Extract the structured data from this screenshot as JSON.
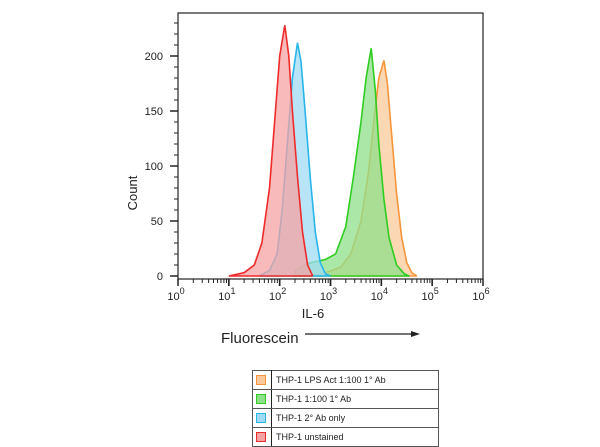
{
  "chart_data": {
    "type": "area",
    "title": "",
    "xlabel": "IL-6",
    "ylabel": "Count",
    "secondary_xlabel": "Fluorescein",
    "x_scale": "log",
    "xlim": [
      1,
      1000000
    ],
    "ylim": [
      0,
      235
    ],
    "x_ticks": [
      "10^0",
      "10^1",
      "10^2",
      "10^3",
      "10^4",
      "10^5",
      "10^6"
    ],
    "y_ticks": [
      0,
      50,
      100,
      150,
      200
    ],
    "grid": false,
    "legend_position": "bottom-center",
    "series": [
      {
        "name": "THP-1 LPS Act 1:100 1° Ab",
        "line_color": "#f7953a",
        "fill_color": "#f9c99b",
        "peak_log10_x": 4.05,
        "peak_count": 196,
        "points": [
          [
            2.5,
            0
          ],
          [
            2.9,
            3
          ],
          [
            3.2,
            8
          ],
          [
            3.4,
            20
          ],
          [
            3.6,
            50
          ],
          [
            3.75,
            95
          ],
          [
            3.85,
            140
          ],
          [
            3.95,
            180
          ],
          [
            4.05,
            196
          ],
          [
            4.12,
            175
          ],
          [
            4.2,
            130
          ],
          [
            4.3,
            75
          ],
          [
            4.4,
            35
          ],
          [
            4.5,
            12
          ],
          [
            4.6,
            3
          ],
          [
            4.7,
            0
          ]
        ]
      },
      {
        "name": "THP-1 1:100 1° Ab",
        "line_color": "#2fcc22",
        "fill_color": "#8fe08a",
        "peak_log10_x": 3.8,
        "peak_count": 207,
        "points": [
          [
            2.3,
            5
          ],
          [
            2.6,
            12
          ],
          [
            2.9,
            15
          ],
          [
            3.1,
            20
          ],
          [
            3.3,
            45
          ],
          [
            3.45,
            90
          ],
          [
            3.6,
            140
          ],
          [
            3.7,
            180
          ],
          [
            3.8,
            207
          ],
          [
            3.88,
            170
          ],
          [
            3.95,
            120
          ],
          [
            4.05,
            70
          ],
          [
            4.15,
            35
          ],
          [
            4.3,
            10
          ],
          [
            4.45,
            2
          ],
          [
            4.55,
            0
          ]
        ]
      },
      {
        "name": "THP-1 2° Ab only",
        "line_color": "#27b5ea",
        "fill_color": "#9fdcf4",
        "peak_log10_x": 2.35,
        "peak_count": 212,
        "points": [
          [
            1.6,
            0
          ],
          [
            1.8,
            5
          ],
          [
            1.95,
            20
          ],
          [
            2.05,
            60
          ],
          [
            2.15,
            120
          ],
          [
            2.25,
            180
          ],
          [
            2.35,
            212
          ],
          [
            2.42,
            195
          ],
          [
            2.5,
            150
          ],
          [
            2.6,
            90
          ],
          [
            2.7,
            40
          ],
          [
            2.8,
            12
          ],
          [
            2.9,
            2
          ],
          [
            3.0,
            0
          ]
        ]
      },
      {
        "name": "THP-1 unstained",
        "line_color": "#ee2a2a",
        "fill_color": "#f5a3a3",
        "peak_log10_x": 2.1,
        "peak_count": 228,
        "points": [
          [
            1.0,
            0
          ],
          [
            1.3,
            3
          ],
          [
            1.5,
            10
          ],
          [
            1.65,
            30
          ],
          [
            1.8,
            80
          ],
          [
            1.9,
            140
          ],
          [
            2.0,
            200
          ],
          [
            2.1,
            228
          ],
          [
            2.18,
            200
          ],
          [
            2.25,
            150
          ],
          [
            2.35,
            90
          ],
          [
            2.45,
            40
          ],
          [
            2.55,
            10
          ],
          [
            2.65,
            0
          ]
        ]
      }
    ]
  },
  "legend": {
    "items": [
      {
        "label": "THP-1 LPS Act 1:100 1° Ab",
        "color": "#f7953a",
        "fill": "#f9c99b"
      },
      {
        "label": "THP-1 1:100 1° Ab",
        "color": "#2fcc22",
        "fill": "#8fe08a"
      },
      {
        "label": "THP-1 2° Ab only",
        "color": "#27b5ea",
        "fill": "#9fdcf4"
      },
      {
        "label": "THP-1 unstained",
        "color": "#ee2a2a",
        "fill": "#f5a3a3"
      }
    ]
  },
  "labels": {
    "fluorescein": "Fluorescein"
  }
}
